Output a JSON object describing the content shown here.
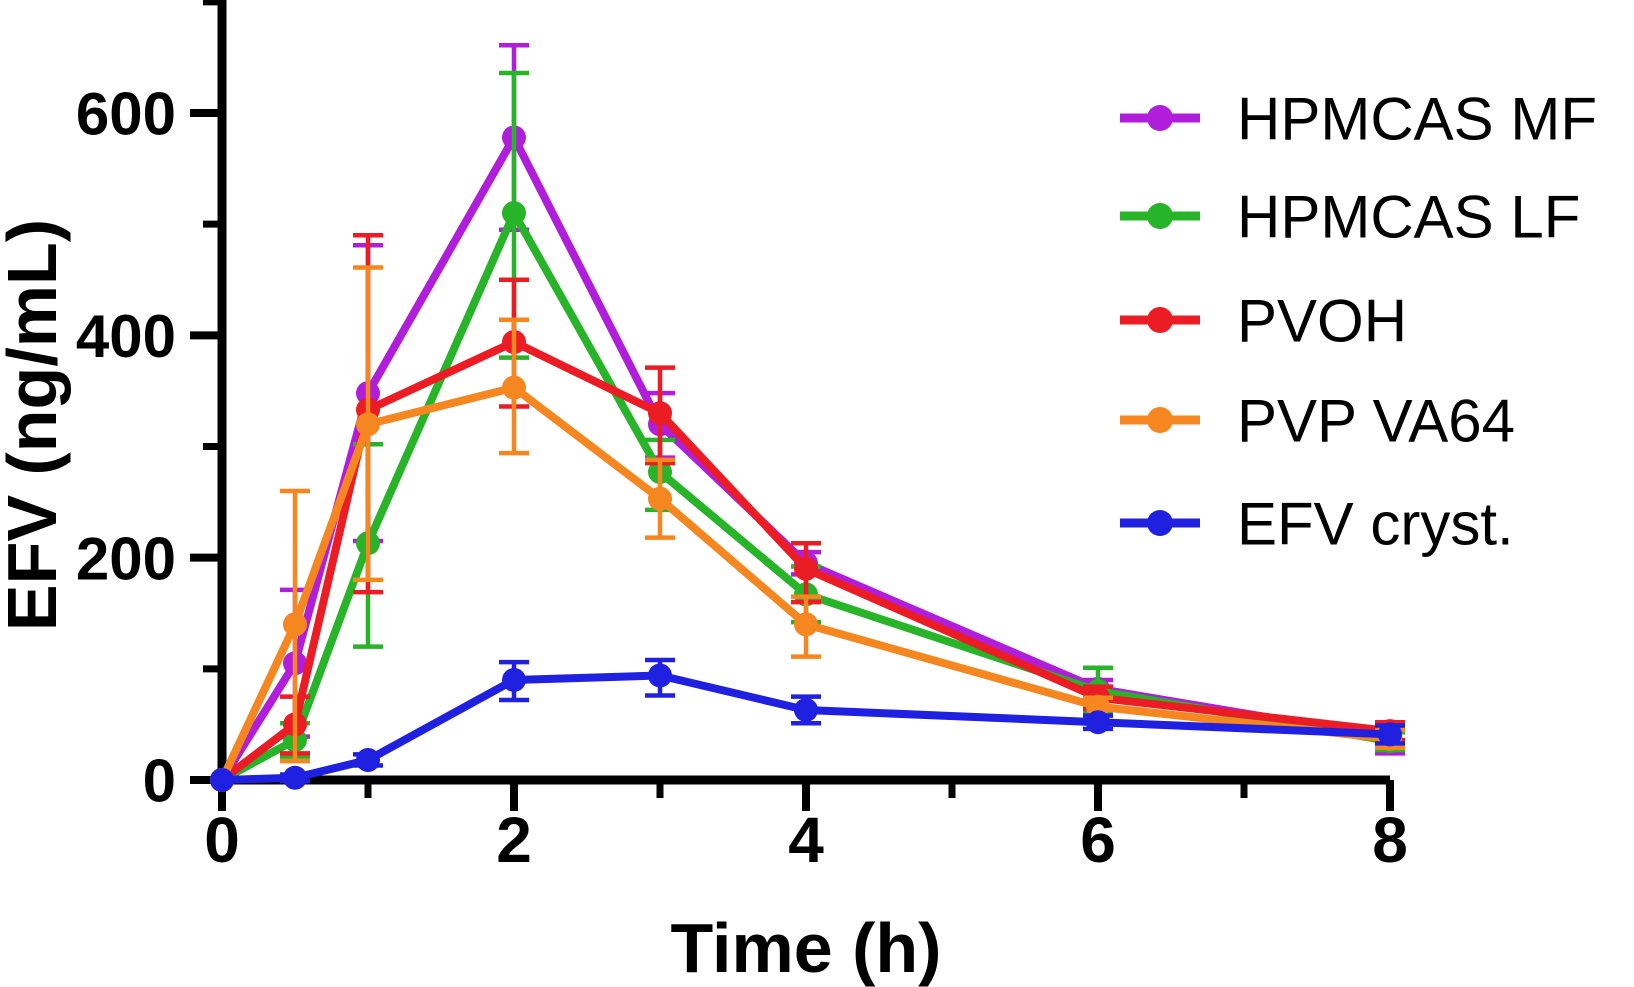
{
  "figure": {
    "background": "#ffffff",
    "title": ""
  },
  "chart_data": {
    "type": "line",
    "title": "",
    "xlabel": "Time (h)",
    "ylabel": "EFV (ng/mL)",
    "x": [
      0,
      0.5,
      1,
      2,
      3,
      4,
      6,
      8
    ],
    "xlim": [
      0,
      8
    ],
    "ylim": [
      0,
      700
    ],
    "grid": false,
    "error_bars": true,
    "legend_position": "right",
    "x_major_ticks": [
      0,
      2,
      4,
      6,
      8
    ],
    "x_minor_ticks": [
      1,
      3,
      5,
      7
    ],
    "y_major_ticks": [
      0,
      200,
      400,
      600
    ],
    "y_minor_ticks": [
      100,
      300,
      500,
      700
    ],
    "series": [
      {
        "name": "HPMCAS MF",
        "color": "#B01EDC",
        "values": [
          0,
          105,
          348,
          578,
          320,
          195,
          82,
          38
        ],
        "err_plus": [
          0,
          66,
          133,
          83,
          28,
          10,
          8,
          10
        ],
        "err_minus": [
          0,
          66,
          133,
          83,
          30,
          10,
          8,
          14
        ]
      },
      {
        "name": "HPMCAS LF",
        "color": "#28B428",
        "values": [
          0,
          36,
          213,
          510,
          277,
          167,
          80,
          35
        ],
        "err_plus": [
          0,
          15,
          89,
          126,
          29,
          25,
          21,
          8
        ],
        "err_minus": [
          0,
          15,
          93,
          130,
          34,
          25,
          20,
          8
        ]
      },
      {
        "name": "PVOH",
        "color": "#EC1C24",
        "values": [
          0,
          50,
          333,
          394,
          330,
          190,
          74,
          44
        ],
        "err_plus": [
          0,
          25,
          157,
          56,
          41,
          23,
          10,
          8
        ],
        "err_minus": [
          0,
          26,
          164,
          58,
          45,
          30,
          10,
          8
        ]
      },
      {
        "name": "PVP VA64",
        "color": "#F6861F",
        "values": [
          0,
          140,
          320,
          353,
          253,
          140,
          66,
          37
        ],
        "err_plus": [
          0,
          120,
          141,
          61,
          35,
          25,
          8,
          8
        ],
        "err_minus": [
          0,
          123,
          140,
          59,
          35,
          29,
          8,
          8
        ]
      },
      {
        "name": "EFV cryst.",
        "color": "#2020E0",
        "values": [
          0,
          2,
          18,
          90,
          94,
          63,
          52,
          41
        ],
        "err_plus": [
          0,
          3,
          5,
          16,
          14,
          12,
          6,
          8
        ],
        "err_minus": [
          0,
          3,
          5,
          18,
          18,
          12,
          6,
          8
        ]
      }
    ]
  }
}
